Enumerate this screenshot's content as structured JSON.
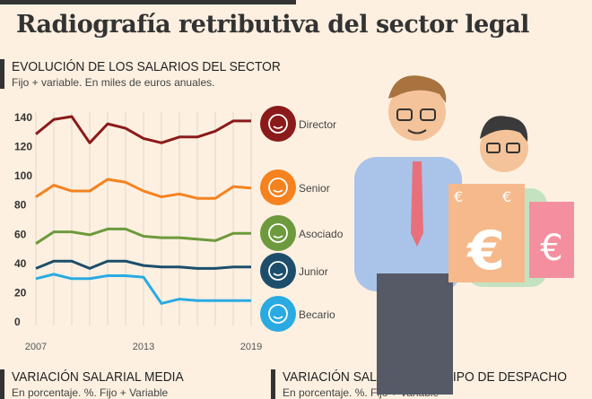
{
  "title": "Radiografía retributiva del sector legal",
  "section1": {
    "heading": "EVOLUCIÓN DE LOS SALARIOS DEL SECTOR",
    "subtitle": "Fijo + variable. En miles de euros anuales."
  },
  "section2": {
    "heading": "VARIACIÓN SALARIAL MEDIA",
    "subtitle": "En porcentaje. %. Fijo + Variable"
  },
  "section3": {
    "heading": "VARIACIÓN SALARIAL POR TIPO DE DESPACHO",
    "subtitle": "En porcentaje. %. Fijo + Variable"
  },
  "chart_data": {
    "type": "line",
    "title": "EVOLUCIÓN DE LOS SALARIOS DEL SECTOR",
    "ylabel": "Miles de euros anuales",
    "x": [
      2007,
      2008,
      2009,
      2010,
      2011,
      2012,
      2013,
      2014,
      2015,
      2016,
      2017,
      2018,
      2019
    ],
    "xticks": [
      "2007",
      "2013",
      "2019"
    ],
    "yticks": [
      "0",
      "20",
      "40",
      "60",
      "80",
      "100",
      "120",
      "140"
    ],
    "ylim": [
      0,
      140
    ],
    "grid": "vertical",
    "series": [
      {
        "name": "Director",
        "color": "#8b1a1a",
        "values": [
          128,
          138,
          140,
          122,
          135,
          132,
          125,
          122,
          126,
          126,
          130,
          137,
          137
        ]
      },
      {
        "name": "Senior",
        "color": "#f5821f",
        "values": [
          85,
          93,
          89,
          89,
          97,
          95,
          89,
          85,
          87,
          84,
          84,
          92,
          91
        ]
      },
      {
        "name": "Asociado",
        "color": "#6d9a3c",
        "values": [
          53,
          61,
          61,
          59,
          63,
          63,
          58,
          57,
          57,
          56,
          55,
          60,
          60
        ]
      },
      {
        "name": "Junior",
        "color": "#1c4e6b",
        "values": [
          36,
          41,
          41,
          36,
          41,
          41,
          38,
          37,
          37,
          36,
          36,
          37,
          37
        ]
      },
      {
        "name": "Becario",
        "color": "#29abe2",
        "values": [
          29,
          32,
          29,
          29,
          31,
          31,
          30,
          12,
          15,
          14,
          14,
          14,
          14
        ]
      }
    ]
  }
}
